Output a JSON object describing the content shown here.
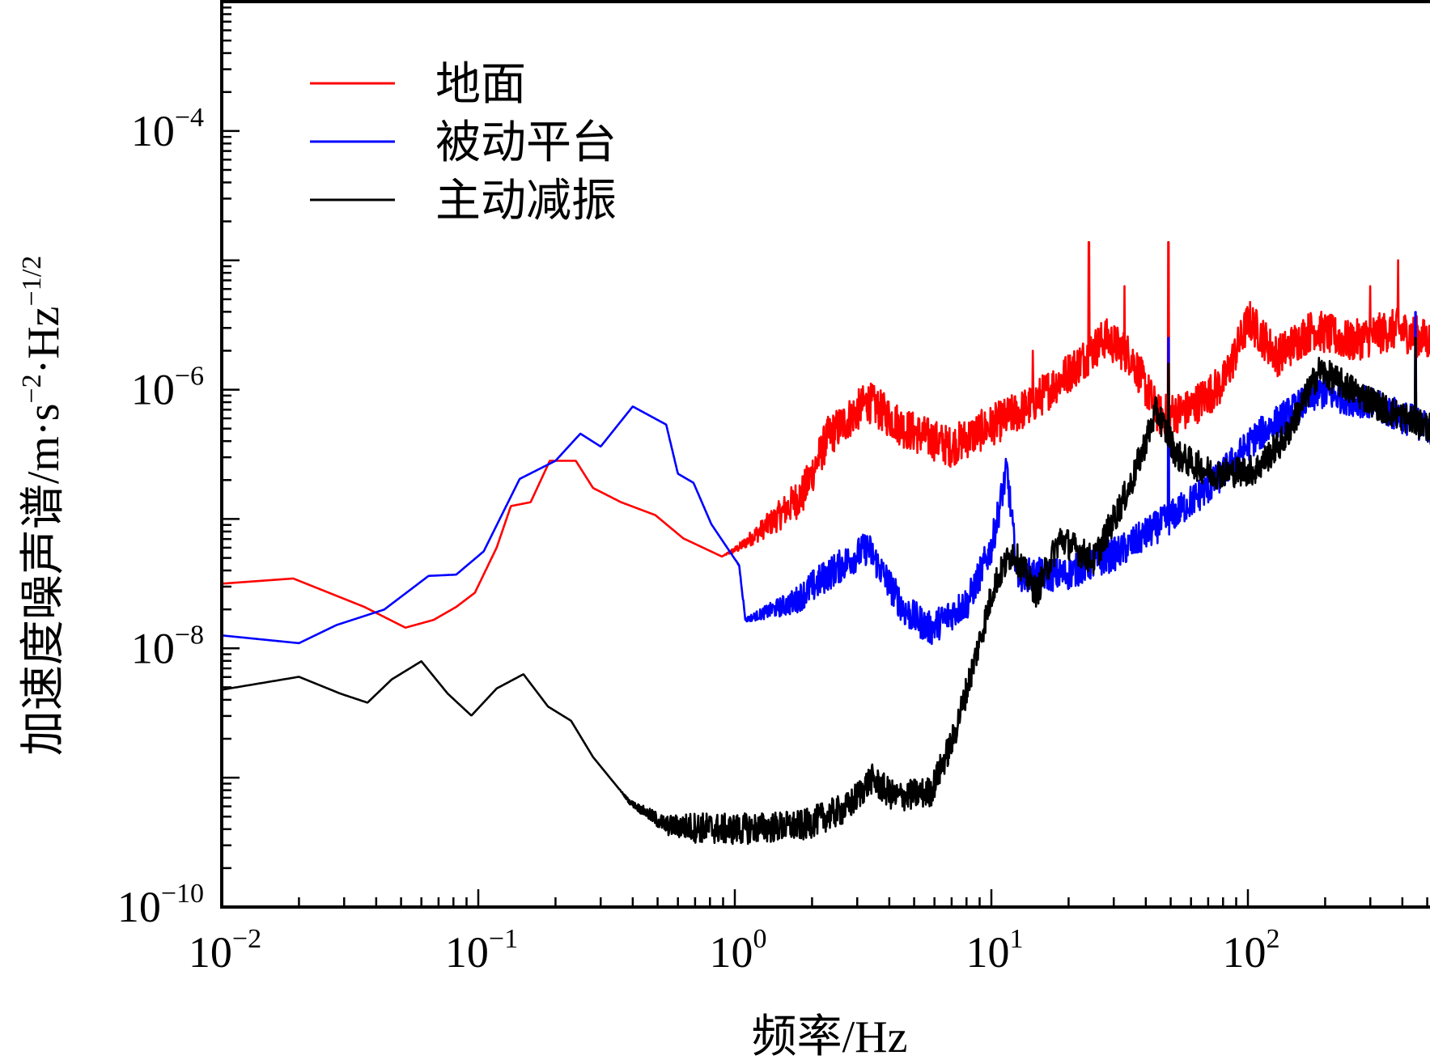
{
  "chart_data": {
    "type": "line",
    "title": "",
    "xlabel": "频率/Hz",
    "ylabel_parts": {
      "main": "加速度噪声谱/m·s",
      "sup1": "−2",
      "mid": "·Hz",
      "sup2": "−1/2"
    },
    "xscale": "log",
    "yscale": "log",
    "xlim": [
      0.01,
      520
    ],
    "ylim": [
      1e-10,
      0.001
    ],
    "grid": false,
    "legend_position": "top-left",
    "x_ticks": [
      {
        "value": 0.01,
        "base": "10",
        "exp": "−2"
      },
      {
        "value": 0.1,
        "base": "10",
        "exp": "−1"
      },
      {
        "value": 1,
        "base": "10",
        "exp": "0"
      },
      {
        "value": 10,
        "base": "10",
        "exp": "1"
      },
      {
        "value": 100,
        "base": "10",
        "exp": "2"
      }
    ],
    "y_ticks": [
      {
        "value": 1e-10,
        "base": "10",
        "exp": "−10"
      },
      {
        "value": 1e-08,
        "base": "10",
        "exp": "−8"
      },
      {
        "value": 1e-06,
        "base": "10",
        "exp": "−6"
      },
      {
        "value": 0.0001,
        "base": "10",
        "exp": "−4"
      }
    ],
    "series": [
      {
        "name": "地面",
        "color": "#ff0000",
        "noise_from_hz": 0.9,
        "noise_dex": 0.16,
        "points": [
          [
            0.01,
            -7.5
          ],
          [
            0.019,
            -7.46
          ],
          [
            0.036,
            -7.68
          ],
          [
            0.052,
            -7.84
          ],
          [
            0.067,
            -7.78
          ],
          [
            0.082,
            -7.68
          ],
          [
            0.097,
            -7.57
          ],
          [
            0.118,
            -7.22
          ],
          [
            0.134,
            -6.9
          ],
          [
            0.16,
            -6.87
          ],
          [
            0.19,
            -6.55
          ],
          [
            0.24,
            -6.55
          ],
          [
            0.28,
            -6.76
          ],
          [
            0.36,
            -6.87
          ],
          [
            0.49,
            -6.97
          ],
          [
            0.63,
            -7.15
          ],
          [
            0.89,
            -7.29
          ],
          [
            1.04,
            -7.22
          ],
          [
            1.44,
            -7.0
          ],
          [
            1.85,
            -6.8
          ],
          [
            2.3,
            -6.37
          ],
          [
            3.3,
            -6.09
          ],
          [
            4.6,
            -6.3
          ],
          [
            6.9,
            -6.44
          ],
          [
            9.5,
            -6.3
          ],
          [
            14,
            -6.13
          ],
          [
            21.6,
            -5.81
          ],
          [
            27.8,
            -5.6
          ],
          [
            35,
            -5.74
          ],
          [
            45,
            -6.2
          ],
          [
            58,
            -6.16
          ],
          [
            80,
            -5.95
          ],
          [
            101,
            -5.46
          ],
          [
            130,
            -5.74
          ],
          [
            180,
            -5.53
          ],
          [
            250,
            -5.63
          ],
          [
            380,
            -5.53
          ],
          [
            520,
            -5.63
          ]
        ],
        "spikes": [
          [
            24,
            -4.86
          ],
          [
            49,
            -4.86
          ],
          [
            14.5,
            -5.7
          ],
          [
            33,
            -5.2
          ],
          [
            385,
            -5.0
          ],
          [
            300,
            -5.2
          ]
        ]
      },
      {
        "name": "被动平台",
        "color": "#0000ff",
        "noise_from_hz": 1.0,
        "noise_dex": 0.13,
        "points": [
          [
            0.01,
            -7.9
          ],
          [
            0.02,
            -7.96
          ],
          [
            0.028,
            -7.82
          ],
          [
            0.043,
            -7.7
          ],
          [
            0.064,
            -7.44
          ],
          [
            0.082,
            -7.43
          ],
          [
            0.105,
            -7.25
          ],
          [
            0.145,
            -6.69
          ],
          [
            0.2,
            -6.55
          ],
          [
            0.25,
            -6.34
          ],
          [
            0.3,
            -6.44
          ],
          [
            0.4,
            -6.13
          ],
          [
            0.54,
            -6.27
          ],
          [
            0.6,
            -6.65
          ],
          [
            0.69,
            -6.72
          ],
          [
            0.81,
            -7.04
          ],
          [
            1.04,
            -7.36
          ],
          [
            1.1,
            -7.78
          ],
          [
            1.7,
            -7.64
          ],
          [
            2.3,
            -7.43
          ],
          [
            3.3,
            -7.22
          ],
          [
            4.6,
            -7.71
          ],
          [
            5.8,
            -7.85
          ],
          [
            8.1,
            -7.64
          ],
          [
            10,
            -7.22
          ],
          [
            11.5,
            -6.62
          ],
          [
            12.6,
            -7.43
          ],
          [
            19.4,
            -7.43
          ],
          [
            32,
            -7.25
          ],
          [
            49,
            -7.0
          ],
          [
            73,
            -6.73
          ],
          [
            107,
            -6.37
          ],
          [
            150,
            -6.16
          ],
          [
            190,
            -6.02
          ],
          [
            280,
            -6.09
          ],
          [
            520,
            -6.3
          ]
        ],
        "spikes": [
          [
            49,
            -5.6
          ],
          [
            450,
            -5.4
          ]
        ]
      },
      {
        "name": "主动减振",
        "color": "#000000",
        "noise_from_hz": 0.35,
        "noise_dex": 0.12,
        "points": [
          [
            0.01,
            -8.32
          ],
          [
            0.02,
            -8.22
          ],
          [
            0.029,
            -8.35
          ],
          [
            0.037,
            -8.42
          ],
          [
            0.046,
            -8.24
          ],
          [
            0.06,
            -8.1
          ],
          [
            0.076,
            -8.35
          ],
          [
            0.094,
            -8.52
          ],
          [
            0.118,
            -8.31
          ],
          [
            0.15,
            -8.2
          ],
          [
            0.187,
            -8.45
          ],
          [
            0.23,
            -8.56
          ],
          [
            0.28,
            -8.84
          ],
          [
            0.39,
            -9.19
          ],
          [
            0.54,
            -9.37
          ],
          [
            0.96,
            -9.4
          ],
          [
            1.85,
            -9.37
          ],
          [
            2.76,
            -9.23
          ],
          [
            3.4,
            -9.01
          ],
          [
            4.2,
            -9.15
          ],
          [
            5.8,
            -9.11
          ],
          [
            7.1,
            -8.7
          ],
          [
            8.4,
            -8.17
          ],
          [
            10.3,
            -7.5
          ],
          [
            12.1,
            -7.25
          ],
          [
            15,
            -7.57
          ],
          [
            18.5,
            -7.15
          ],
          [
            25,
            -7.32
          ],
          [
            35,
            -6.73
          ],
          [
            44,
            -6.16
          ],
          [
            53,
            -6.51
          ],
          [
            73,
            -6.65
          ],
          [
            107,
            -6.62
          ],
          [
            140,
            -6.37
          ],
          [
            190,
            -5.85
          ],
          [
            230,
            -5.95
          ],
          [
            350,
            -6.16
          ],
          [
            520,
            -6.3
          ]
        ],
        "spikes": [
          [
            49,
            -5.8
          ],
          [
            450,
            -5.6
          ]
        ]
      }
    ]
  }
}
